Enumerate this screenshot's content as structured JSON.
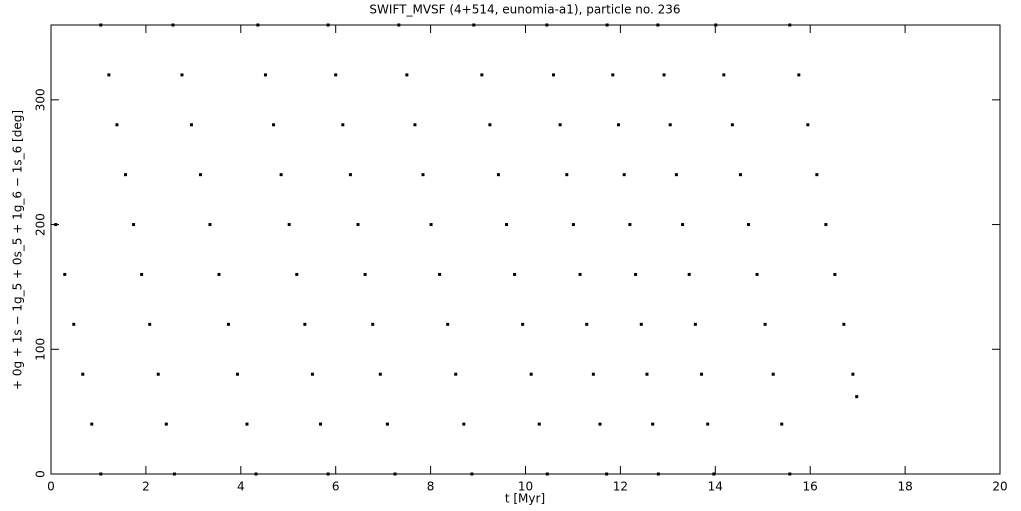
{
  "chart_data": {
    "type": "scatter",
    "title": "SWIFT_MVSF (4+514, eunomia-a1), particle no. 236",
    "x_label": "t [Myr]",
    "y_label": "+ 0g + 1s − 1g_5 + 0s_5 + 1g_6 − 1s_6 [deg]",
    "xlim": [
      0,
      20
    ],
    "ylim": [
      0,
      360
    ],
    "xticks": [
      0,
      2,
      4,
      6,
      8,
      10,
      12,
      14,
      16,
      18,
      20
    ],
    "yticks": [
      0,
      100,
      200,
      300
    ],
    "color": "#000000",
    "x": [
      0.1,
      0.29,
      0.48,
      0.67,
      0.86,
      1.05,
      1.05,
      1.22,
      1.39,
      1.57,
      1.74,
      1.91,
      2.08,
      2.26,
      2.43,
      2.6,
      2.57,
      2.76,
      2.96,
      3.15,
      3.35,
      3.54,
      3.74,
      3.93,
      4.13,
      4.32,
      4.36,
      4.52,
      4.69,
      4.85,
      5.02,
      5.18,
      5.35,
      5.51,
      5.68,
      5.84,
      5.84,
      6.0,
      6.15,
      6.31,
      6.47,
      6.62,
      6.78,
      6.94,
      7.09,
      7.25,
      7.33,
      7.5,
      7.67,
      7.84,
      8.01,
      8.19,
      8.36,
      8.53,
      8.7,
      8.87,
      8.91,
      9.08,
      9.25,
      9.43,
      9.6,
      9.77,
      9.94,
      10.12,
      10.29,
      10.46,
      10.45,
      10.59,
      10.73,
      10.87,
      11.01,
      11.15,
      11.29,
      11.43,
      11.57,
      11.71,
      11.72,
      11.84,
      11.96,
      12.08,
      12.2,
      12.32,
      12.44,
      12.56,
      12.68,
      12.8,
      12.79,
      12.92,
      13.05,
      13.18,
      13.31,
      13.45,
      13.58,
      13.71,
      13.84,
      13.97,
      14.01,
      14.18,
      14.36,
      14.53,
      14.7,
      14.88,
      15.05,
      15.22,
      15.4,
      15.57,
      15.57,
      15.76,
      15.95,
      16.14,
      16.33,
      16.52,
      16.71,
      16.9,
      16.98
    ],
    "y": [
      200,
      160,
      120,
      80,
      40,
      0,
      360,
      320,
      280,
      240,
      200,
      160,
      120,
      80,
      40,
      0,
      360,
      320,
      280,
      240,
      200,
      160,
      120,
      80,
      40,
      0,
      360,
      320,
      280,
      240,
      200,
      160,
      120,
      80,
      40,
      0,
      360,
      320,
      280,
      240,
      200,
      160,
      120,
      80,
      40,
      0,
      360,
      320,
      280,
      240,
      200,
      160,
      120,
      80,
      40,
      0,
      360,
      320,
      280,
      240,
      200,
      160,
      120,
      80,
      40,
      0,
      360,
      320,
      280,
      240,
      200,
      160,
      120,
      80,
      40,
      0,
      360,
      320,
      280,
      240,
      200,
      160,
      120,
      80,
      40,
      0,
      360,
      320,
      280,
      240,
      200,
      160,
      120,
      80,
      40,
      0,
      360,
      320,
      280,
      240,
      200,
      160,
      120,
      80,
      40,
      0,
      360,
      320,
      280,
      240,
      200,
      160,
      120,
      80,
      62
    ]
  }
}
